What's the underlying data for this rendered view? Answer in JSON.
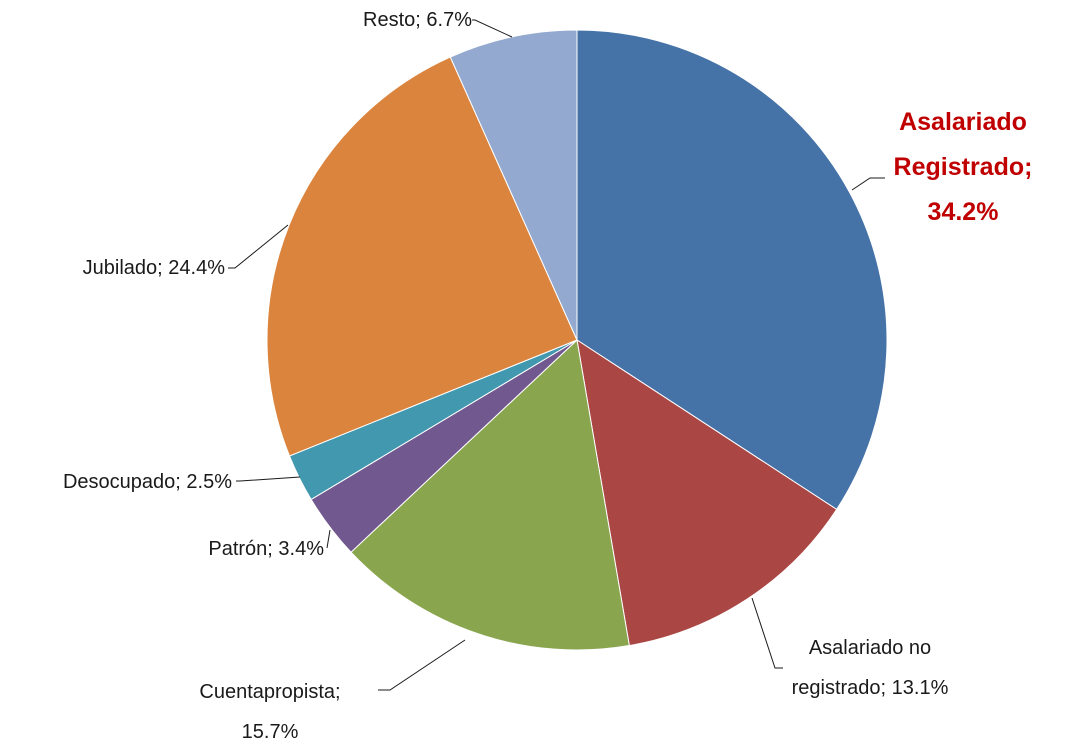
{
  "chart_data": {
    "type": "pie",
    "values": [
      34.2,
      13.1,
      15.7,
      3.4,
      2.5,
      24.4,
      6.7
    ],
    "value_labels": [
      "Asalariado Registrado; 34.2%",
      "Asalariado no registrado; 13.1%",
      "Cuentapropista; 15.7%",
      "Patrón; 3.4%",
      "Desocupado; 2.5%",
      "Jubilado; 24.4%",
      "Resto; 6.7%"
    ],
    "colors": [
      "#4572a7",
      "#aa4643",
      "#89a54e",
      "#71588f",
      "#4198af",
      "#db843d",
      "#93a9cf"
    ]
  }
}
